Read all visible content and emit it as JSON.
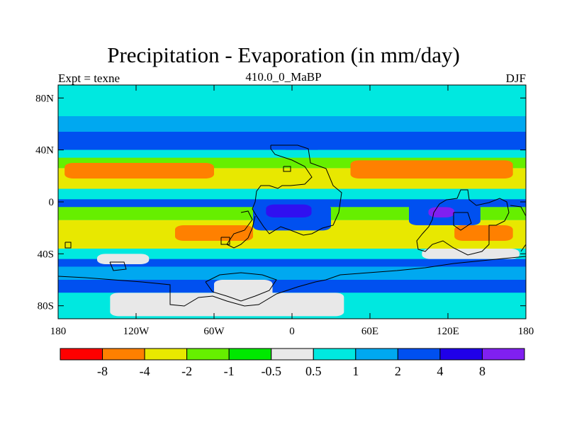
{
  "header": {
    "title": "Precipitation - Evaporation (in mm/day)",
    "left": "Expt = texne",
    "center": "410.0_0_MaBP",
    "right": "DJF"
  },
  "map": {
    "projection": "cylindrical-equidistant",
    "lon_range": [
      -180,
      180
    ],
    "lat_range": [
      -90,
      90
    ],
    "lat_ticks": [
      {
        "value": 80,
        "label": "80N"
      },
      {
        "value": 40,
        "label": "40N"
      },
      {
        "value": 0,
        "label": "0"
      },
      {
        "value": -40,
        "label": "40S"
      },
      {
        "value": -80,
        "label": "80S"
      }
    ],
    "lon_ticks": [
      {
        "value": -180,
        "label": "180"
      },
      {
        "value": -120,
        "label": "120W"
      },
      {
        "value": -60,
        "label": "60W"
      },
      {
        "value": 0,
        "label": "0"
      },
      {
        "value": 60,
        "label": "60E"
      },
      {
        "value": 120,
        "label": "120E"
      },
      {
        "value": 180,
        "label": "180"
      }
    ],
    "background_color": "#00e8e0",
    "bands": [
      {
        "lat": [
          66,
          90
        ],
        "color": "#00e8e0"
      },
      {
        "lat": [
          54,
          66
        ],
        "color": "#00a8f0"
      },
      {
        "lat": [
          40,
          54
        ],
        "color": "#0050f0"
      },
      {
        "lat": [
          34,
          40
        ],
        "color": "#00e8e0"
      },
      {
        "lat": [
          26,
          34
        ],
        "color": "#66ef00"
      },
      {
        "lat": [
          10,
          26
        ],
        "color": "#e8e800"
      },
      {
        "lat": [
          2,
          10
        ],
        "color": "#00e8e0"
      },
      {
        "lat": [
          -4,
          2
        ],
        "color": "#0050f0"
      },
      {
        "lat": [
          -14,
          -4
        ],
        "color": "#66ef00"
      },
      {
        "lat": [
          -36,
          -14
        ],
        "color": "#e8e800"
      },
      {
        "lat": [
          -44,
          -36
        ],
        "color": "#00e8e0"
      },
      {
        "lat": [
          -50,
          -44
        ],
        "color": "#0050f0"
      },
      {
        "lat": [
          -60,
          -50
        ],
        "color": "#00a8f0"
      },
      {
        "lat": [
          -70,
          -60
        ],
        "color": "#0050f0"
      },
      {
        "lat": [
          -90,
          -70
        ],
        "color": "#00e8e0"
      }
    ],
    "patches": [
      {
        "lon": [
          -175,
          -60
        ],
        "lat": [
          18,
          30
        ],
        "color": "#ff8000"
      },
      {
        "lon": [
          45,
          170
        ],
        "lat": [
          18,
          32
        ],
        "color": "#ff8000"
      },
      {
        "lon": [
          -90,
          -30
        ],
        "lat": [
          -30,
          -18
        ],
        "color": "#ff8000"
      },
      {
        "lon": [
          125,
          170
        ],
        "lat": [
          -30,
          -18
        ],
        "color": "#ff8000"
      },
      {
        "lon": [
          -30,
          30
        ],
        "lat": [
          -22,
          -2
        ],
        "color": "#0050f0"
      },
      {
        "lon": [
          -20,
          15
        ],
        "lat": [
          -12,
          -2
        ],
        "color": "#3010f0"
      },
      {
        "lon": [
          90,
          145
        ],
        "lat": [
          -18,
          0
        ],
        "color": "#0050f0"
      },
      {
        "lon": [
          105,
          125
        ],
        "lat": [
          -12,
          -4
        ],
        "color": "#8020f0"
      },
      {
        "lon": [
          -10,
          25
        ],
        "lat": [
          40,
          50
        ],
        "color": "#0050f0"
      },
      {
        "lon": [
          -150,
          -110
        ],
        "lat": [
          -48,
          -40
        ],
        "color": "#e8e8e8"
      },
      {
        "lon": [
          100,
          175
        ],
        "lat": [
          -44,
          -36
        ],
        "color": "#e8e8e8"
      },
      {
        "lon": [
          -140,
          40
        ],
        "lat": [
          -88,
          -70
        ],
        "color": "#e8e8e8"
      },
      {
        "lon": [
          -60,
          -15
        ],
        "lat": [
          -74,
          -60
        ],
        "color": "#e8e8e8"
      }
    ]
  },
  "colorbar": {
    "colors": [
      "#ff0000",
      "#ff8000",
      "#e8e800",
      "#66ef00",
      "#00e800",
      "#e8e8e8",
      "#00e8e0",
      "#00a8f0",
      "#0050f0",
      "#2000e8",
      "#8020f0"
    ],
    "labels": [
      "-8",
      "-4",
      "-2",
      "-1",
      "-0.5",
      "0.5",
      "1",
      "2",
      "4",
      "8"
    ]
  }
}
